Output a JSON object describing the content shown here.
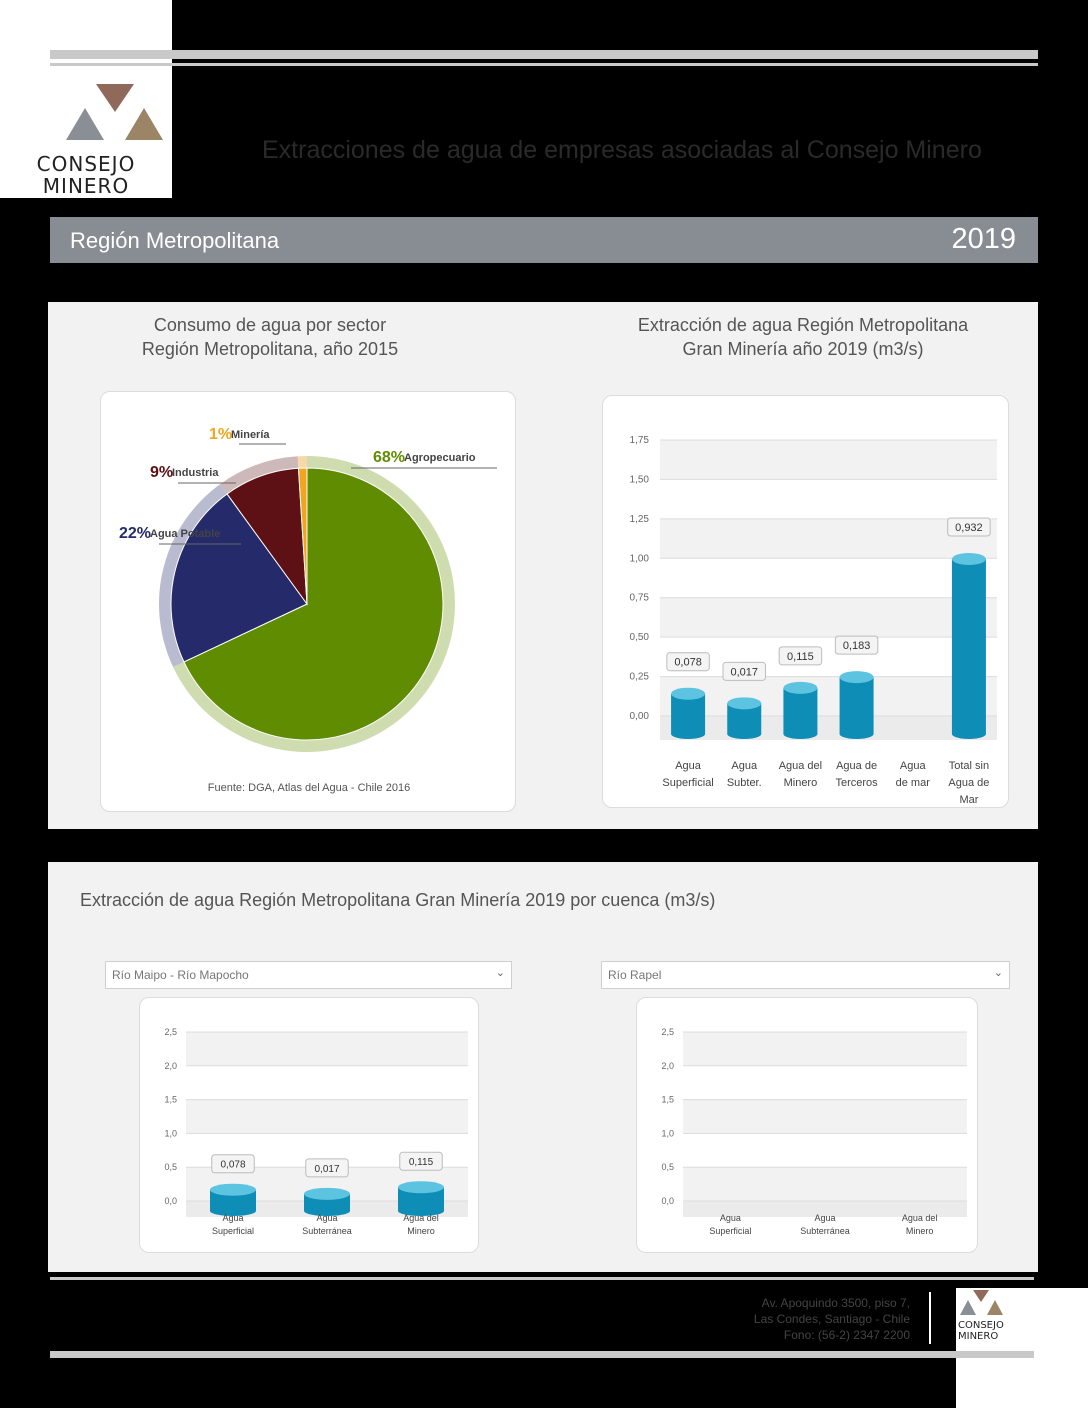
{
  "header": {
    "logo_line1": "CONSEJO",
    "logo_line2": "MINERO",
    "title": "Extracciones de agua de empresas asociadas al Consejo Minero"
  },
  "region_bar": {
    "region": "Región Metropolitana",
    "year": "2019"
  },
  "pie_panel": {
    "title_line1": "Consumo de agua por sector",
    "title_line2": "Región Metropolitana, año 2015",
    "source": "Fuente: DGA, Atlas del Agua - Chile 2016"
  },
  "bar_panel": {
    "title_line1": "Extracción de agua Región Metropolitana",
    "title_line2": "Gran Minería año 2019 (m3/s)"
  },
  "basin_panel": {
    "title": "Extracción de agua Región Metropolitana Gran Minería 2019 por cuenca (m3/s)",
    "select_left": "Río Maipo - Río Mapocho",
    "select_right": "Río Rapel"
  },
  "footer": {
    "line1": "Av. Apoquindo 3500, piso 7,",
    "line2": "Las Condes, Santiago - Chile",
    "line3": "Fono: (56-2) 2347 2200",
    "logo_line1": "CONSEJO",
    "logo_line2": "MINERO"
  },
  "colors": {
    "agro": "#5f8c00",
    "potable": "#252a6b",
    "industria": "#5e1114",
    "mineria": "#f0a51e",
    "bar": "#0e8db6",
    "logo_brown": "#8f6a5a",
    "logo_grey": "#8a8f96",
    "logo_gold": "#9c8566"
  },
  "chart_data": [
    {
      "type": "pie",
      "slices": [
        {
          "label": "Agropecuario",
          "pct_text": "68%",
          "value": 68
        },
        {
          "label": "Agua Potable",
          "pct_text": "22%",
          "value": 22
        },
        {
          "label": "Industria",
          "pct_text": "9%",
          "value": 9
        },
        {
          "label": "Minería",
          "pct_text": "1%",
          "value": 1
        }
      ]
    },
    {
      "type": "bar",
      "categories": [
        [
          "Agua",
          "Superficial"
        ],
        [
          "Agua",
          "Subter."
        ],
        [
          "Agua del",
          "Minero"
        ],
        [
          "Agua de",
          "Terceros"
        ],
        [
          "Agua",
          "de mar"
        ],
        [
          "Total sin",
          "Agua de",
          "Mar"
        ]
      ],
      "values": [
        0.078,
        0.017,
        0.115,
        0.183,
        null,
        0.932
      ],
      "labels": [
        "0,078",
        "0,017",
        "0,115",
        "0,183",
        "",
        "0,932"
      ],
      "yticks": [
        "0,00",
        "0,25",
        "0,50",
        "0,75",
        "1,00",
        "1,25",
        "1,50",
        "1,75"
      ],
      "ylim": [
        0,
        1.75
      ],
      "grid": true
    },
    {
      "type": "bar",
      "categories": [
        [
          "Agua",
          "Superficial"
        ],
        [
          "Agua",
          "Subterránea"
        ],
        [
          "Agua del",
          "Minero"
        ]
      ],
      "values": [
        0.078,
        0.017,
        0.115
      ],
      "labels": [
        "0,078",
        "0,017",
        "0,115"
      ],
      "yticks": [
        "0,0",
        "0,5",
        "1,0",
        "1,5",
        "2,0",
        "2,5"
      ],
      "ylim": [
        0,
        2.5
      ],
      "grid": true
    },
    {
      "type": "bar",
      "categories": [
        [
          "Agua",
          "Superficial"
        ],
        [
          "Agua",
          "Subterránea"
        ],
        [
          "Agua del",
          "Minero"
        ]
      ],
      "values": [
        null,
        null,
        null
      ],
      "labels": [
        "",
        "",
        ""
      ],
      "yticks": [
        "0,0",
        "0,5",
        "1,0",
        "1,5",
        "2,0",
        "2,5"
      ],
      "ylim": [
        0,
        2.5
      ],
      "grid": true
    }
  ]
}
